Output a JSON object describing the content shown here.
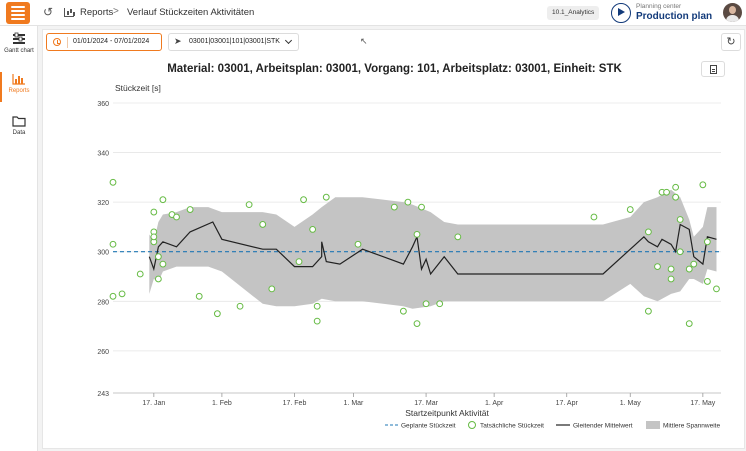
{
  "topbar": {
    "breadcrumb_root": "Reports",
    "breadcrumb_separator": ">",
    "breadcrumb_page": "Verlauf Stückzeiten Aktivitäten",
    "version_badge": "10.1_Analytics",
    "planning_center_label": "Planning center",
    "production_plan_label": "Production plan"
  },
  "sidebar": {
    "items": [
      {
        "label": "Gantt chart",
        "icon": "gantt-icon"
      },
      {
        "label": "Reports",
        "icon": "bar-chart-icon",
        "active": true
      },
      {
        "label": "Data",
        "icon": "folder-icon"
      }
    ]
  },
  "toolbar": {
    "date_range": "01/01/2024 - 07/01/2024",
    "selection": "03001|03001|101|03001|STK",
    "refresh_icon": "refresh-icon",
    "export_icon": "document-icon"
  },
  "colors": {
    "accent": "#f07a1f",
    "brand_blue": "#123a7a",
    "planned_line": "#1f77b4",
    "actual_marker": "#66bb44",
    "moving_avg": "#222222",
    "band_fill": "#c4c4c4"
  },
  "chart_data": {
    "type": "line",
    "title": "Material: 03001, Arbeitsplan: 03001, Vorgang: 101, Arbeitsplatz: 03001, Einheit: STK",
    "ylabel": "Stückzeit [s]",
    "xlabel": "Startzeitpunkt Aktivität",
    "ylim": [
      243,
      360
    ],
    "yticks": [
      243,
      260,
      280,
      300,
      320,
      340,
      360
    ],
    "xlim": [
      "2024-01-08",
      "2024-05-21"
    ],
    "xticks": [
      {
        "date": "2024-01-17",
        "label": "17. Jan"
      },
      {
        "date": "2024-02-01",
        "label": "1. Feb"
      },
      {
        "date": "2024-02-17",
        "label": "17. Feb"
      },
      {
        "date": "2024-03-01",
        "label": "1. Mar"
      },
      {
        "date": "2024-03-17",
        "label": "17. Mar"
      },
      {
        "date": "2024-04-01",
        "label": "1. Apr"
      },
      {
        "date": "2024-04-17",
        "label": "17. Apr"
      },
      {
        "date": "2024-05-01",
        "label": "1. May"
      },
      {
        "date": "2024-05-17",
        "label": "17. May"
      }
    ],
    "legend_position": "bottom-right",
    "legend": {
      "planned": "Geplante Stückzeit",
      "actual": "Tatsächliche Stückzeit",
      "moving_avg": "Gleitender Mittelwert",
      "band": "Mittlere Spannweite"
    },
    "planned_value": 300,
    "actual_points": [
      [
        "2024-01-08",
        328
      ],
      [
        "2024-01-08",
        303
      ],
      [
        "2024-01-08",
        282
      ],
      [
        "2024-01-10",
        283
      ],
      [
        "2024-01-14",
        291
      ],
      [
        "2024-01-17",
        304
      ],
      [
        "2024-01-17",
        316
      ],
      [
        "2024-01-17",
        308
      ],
      [
        "2024-01-17",
        306
      ],
      [
        "2024-01-18",
        289
      ],
      [
        "2024-01-18",
        298
      ],
      [
        "2024-01-19",
        321
      ],
      [
        "2024-01-19",
        295
      ],
      [
        "2024-01-21",
        315
      ],
      [
        "2024-01-22",
        314
      ],
      [
        "2024-01-25",
        317
      ],
      [
        "2024-01-27",
        282
      ],
      [
        "2024-01-31",
        275
      ],
      [
        "2024-02-05",
        278
      ],
      [
        "2024-02-07",
        319
      ],
      [
        "2024-02-10",
        311
      ],
      [
        "2024-02-12",
        285
      ],
      [
        "2024-02-18",
        296
      ],
      [
        "2024-02-19",
        321
      ],
      [
        "2024-02-21",
        309
      ],
      [
        "2024-02-22",
        278
      ],
      [
        "2024-02-22",
        272
      ],
      [
        "2024-02-24",
        322
      ],
      [
        "2024-03-02",
        303
      ],
      [
        "2024-03-10",
        318
      ],
      [
        "2024-03-12",
        276
      ],
      [
        "2024-03-13",
        320
      ],
      [
        "2024-03-15",
        271
      ],
      [
        "2024-03-15",
        307
      ],
      [
        "2024-03-16",
        318
      ],
      [
        "2024-03-17",
        279
      ],
      [
        "2024-03-20",
        279
      ],
      [
        "2024-03-24",
        306
      ],
      [
        "2024-04-23",
        314
      ],
      [
        "2024-05-01",
        317
      ],
      [
        "2024-05-05",
        276
      ],
      [
        "2024-05-05",
        308
      ],
      [
        "2024-05-07",
        294
      ],
      [
        "2024-05-08",
        324
      ],
      [
        "2024-05-09",
        324
      ],
      [
        "2024-05-10",
        289
      ],
      [
        "2024-05-10",
        293
      ],
      [
        "2024-05-11",
        326
      ],
      [
        "2024-05-11",
        322
      ],
      [
        "2024-05-12",
        300
      ],
      [
        "2024-05-12",
        313
      ],
      [
        "2024-05-14",
        271
      ],
      [
        "2024-05-14",
        293
      ],
      [
        "2024-05-15",
        295
      ],
      [
        "2024-05-17",
        327
      ],
      [
        "2024-05-18",
        304
      ],
      [
        "2024-05-18",
        288
      ],
      [
        "2024-05-20",
        285
      ]
    ],
    "moving_avg": [
      [
        "2024-01-16",
        298
      ],
      [
        "2024-01-17",
        293
      ],
      [
        "2024-01-18",
        302
      ],
      [
        "2024-01-19",
        304
      ],
      [
        "2024-01-22",
        302
      ],
      [
        "2024-01-25",
        308
      ],
      [
        "2024-01-30",
        312
      ],
      [
        "2024-02-01",
        305
      ],
      [
        "2024-02-10",
        301
      ],
      [
        "2024-02-13",
        301
      ],
      [
        "2024-02-17",
        294
      ],
      [
        "2024-02-21",
        294
      ],
      [
        "2024-02-23",
        298
      ],
      [
        "2024-02-23",
        304
      ],
      [
        "2024-02-24",
        296
      ],
      [
        "2024-02-27",
        295
      ],
      [
        "2024-03-03",
        301
      ],
      [
        "2024-03-12",
        295
      ],
      [
        "2024-03-14",
        302
      ],
      [
        "2024-03-15",
        306
      ],
      [
        "2024-03-16",
        293
      ],
      [
        "2024-03-17",
        297
      ],
      [
        "2024-03-18",
        291
      ],
      [
        "2024-03-21",
        298
      ],
      [
        "2024-03-24",
        291
      ],
      [
        "2024-04-25",
        291
      ],
      [
        "2024-05-01",
        301
      ],
      [
        "2024-05-04",
        306
      ],
      [
        "2024-05-05",
        304
      ],
      [
        "2024-05-07",
        302
      ],
      [
        "2024-05-08",
        305
      ],
      [
        "2024-05-10",
        303
      ],
      [
        "2024-05-11",
        300
      ],
      [
        "2024-05-12",
        311
      ],
      [
        "2024-05-14",
        309
      ],
      [
        "2024-05-15",
        298
      ],
      [
        "2024-05-17",
        295
      ],
      [
        "2024-05-18",
        306
      ],
      [
        "2024-05-20",
        305
      ]
    ],
    "band_upper": [
      [
        "2024-01-16",
        307
      ],
      [
        "2024-01-17",
        304
      ],
      [
        "2024-01-18",
        312
      ],
      [
        "2024-01-19",
        315
      ],
      [
        "2024-01-22",
        316
      ],
      [
        "2024-01-25",
        318
      ],
      [
        "2024-01-29",
        318
      ],
      [
        "2024-02-01",
        316
      ],
      [
        "2024-02-10",
        316
      ],
      [
        "2024-02-13",
        315
      ],
      [
        "2024-02-17",
        310
      ],
      [
        "2024-02-21",
        315
      ],
      [
        "2024-02-23",
        318
      ],
      [
        "2024-02-26",
        322
      ],
      [
        "2024-03-03",
        322
      ],
      [
        "2024-03-12",
        320
      ],
      [
        "2024-03-14",
        319
      ],
      [
        "2024-03-18",
        316
      ],
      [
        "2024-03-21",
        312
      ],
      [
        "2024-03-24",
        311
      ],
      [
        "2024-04-25",
        311
      ],
      [
        "2024-05-01",
        314
      ],
      [
        "2024-05-04",
        320
      ],
      [
        "2024-05-07",
        322
      ],
      [
        "2024-05-10",
        325
      ],
      [
        "2024-05-12",
        322
      ],
      [
        "2024-05-14",
        313
      ],
      [
        "2024-05-15",
        306
      ],
      [
        "2024-05-17",
        310
      ],
      [
        "2024-05-18",
        318
      ],
      [
        "2024-05-20",
        318
      ]
    ],
    "band_lower": [
      [
        "2024-05-20",
        292
      ],
      [
        "2024-05-18",
        293
      ],
      [
        "2024-05-17",
        287
      ],
      [
        "2024-05-15",
        289
      ],
      [
        "2024-05-14",
        289
      ],
      [
        "2024-05-12",
        284
      ],
      [
        "2024-05-10",
        283
      ],
      [
        "2024-05-07",
        280
      ],
      [
        "2024-05-04",
        282
      ],
      [
        "2024-05-01",
        287
      ],
      [
        "2024-04-25",
        280
      ],
      [
        "2024-03-24",
        280
      ],
      [
        "2024-03-21",
        280
      ],
      [
        "2024-03-18",
        278
      ],
      [
        "2024-03-14",
        277
      ],
      [
        "2024-03-12",
        278
      ],
      [
        "2024-03-03",
        280
      ],
      [
        "2024-02-26",
        280
      ],
      [
        "2024-02-23",
        281
      ],
      [
        "2024-02-21",
        279
      ],
      [
        "2024-02-17",
        278
      ],
      [
        "2024-02-13",
        278
      ],
      [
        "2024-02-10",
        279
      ],
      [
        "2024-02-01",
        292
      ],
      [
        "2024-01-29",
        294
      ],
      [
        "2024-01-25",
        294
      ],
      [
        "2024-01-22",
        294
      ],
      [
        "2024-01-19",
        292
      ],
      [
        "2024-01-18",
        288
      ],
      [
        "2024-01-17",
        289
      ],
      [
        "2024-01-16",
        283
      ]
    ]
  }
}
